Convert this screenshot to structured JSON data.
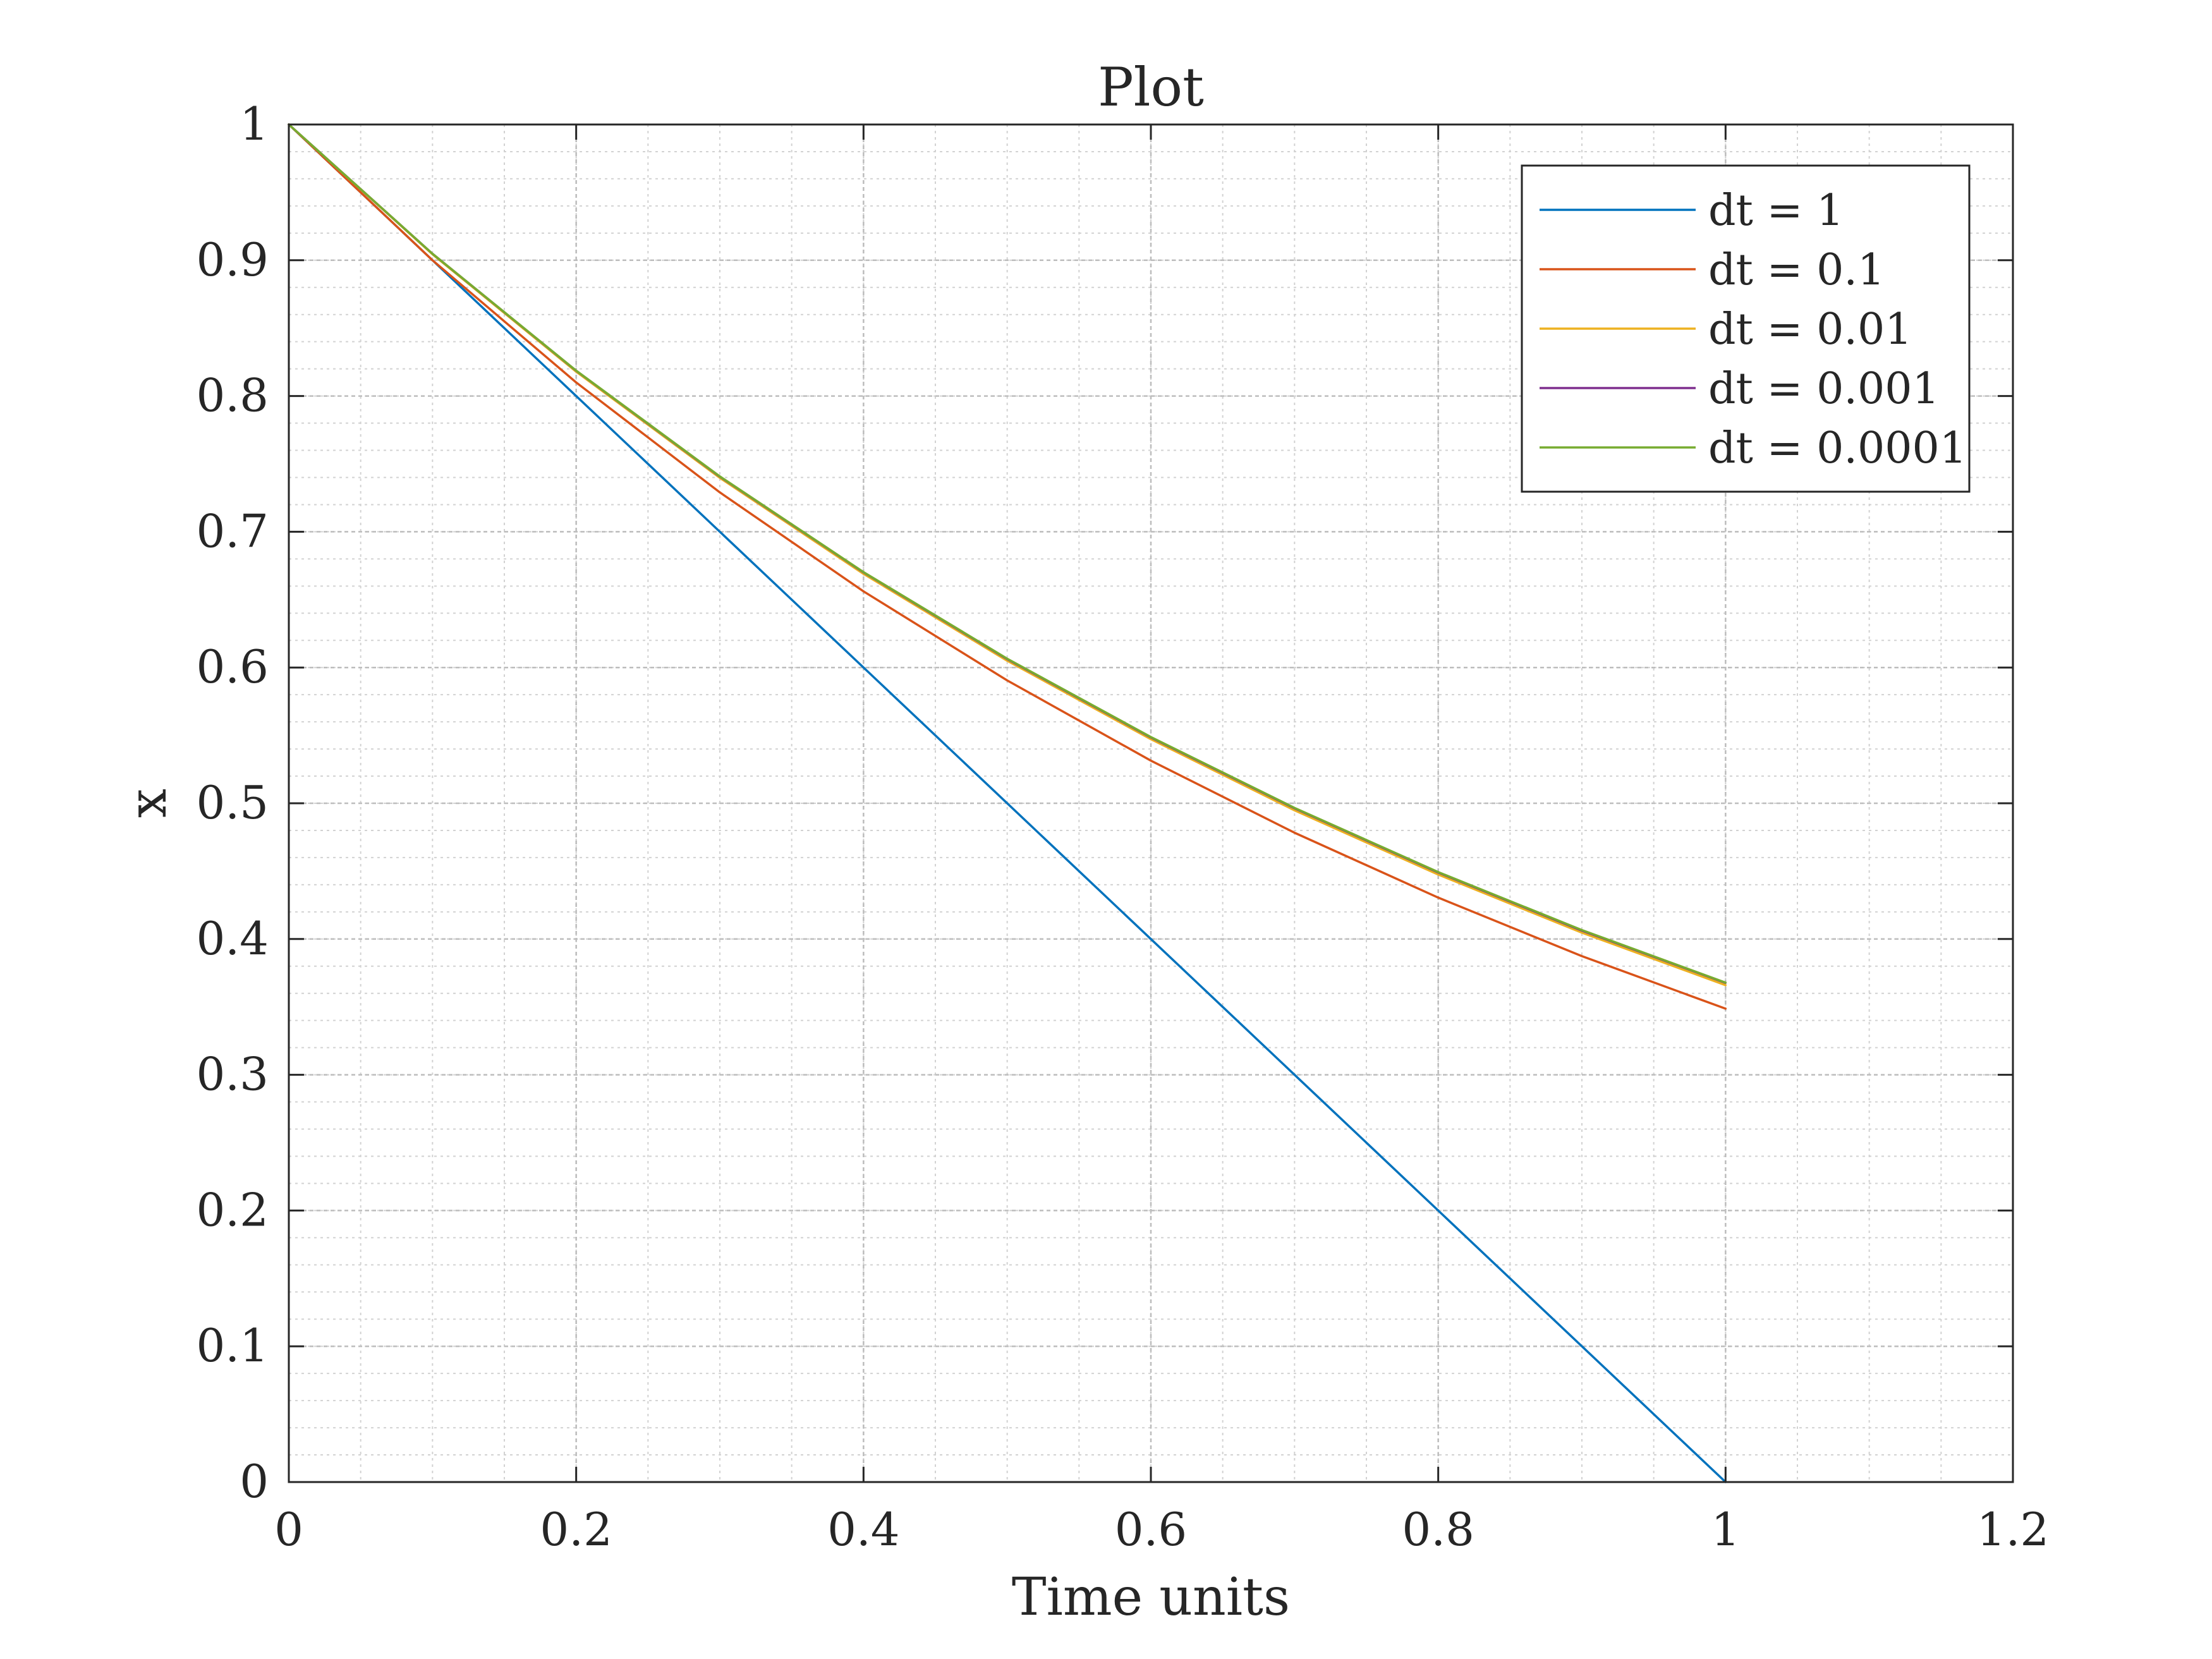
{
  "chart_data": {
    "type": "line",
    "title": "Plot",
    "xlabel": "Time units",
    "ylabel": "x",
    "xlim": [
      0,
      1.2
    ],
    "ylim": [
      0,
      1
    ],
    "xticks": [
      0,
      0.2,
      0.4,
      0.6,
      0.8,
      1,
      1.2
    ],
    "xtick_labels": [
      "0",
      "0.2",
      "0.4",
      "0.6",
      "0.8",
      "1",
      "1.2"
    ],
    "yticks": [
      0,
      0.1,
      0.2,
      0.3,
      0.4,
      0.5,
      0.6,
      0.7,
      0.8,
      0.9,
      1
    ],
    "ytick_labels": [
      "0",
      "0.1",
      "0.2",
      "0.3",
      "0.4",
      "0.5",
      "0.6",
      "0.7",
      "0.8",
      "0.9",
      "1"
    ],
    "grid": true,
    "minor_grid": true,
    "legend_position": "top-right",
    "series": [
      {
        "name": "dt = 1",
        "color": "#0072BD",
        "x": [
          0,
          1
        ],
        "y": [
          1,
          0
        ]
      },
      {
        "name": "dt = 0.1",
        "color": "#D95319",
        "x": [
          0,
          0.1,
          0.2,
          0.3,
          0.4,
          0.5,
          0.6,
          0.7,
          0.8,
          0.9,
          1
        ],
        "y": [
          1,
          0.9,
          0.81,
          0.729,
          0.6561,
          0.5905,
          0.5314,
          0.4783,
          0.4305,
          0.3874,
          0.3487
        ]
      },
      {
        "name": "dt = 0.01",
        "color": "#EDB120",
        "x": [
          0,
          0.1,
          0.2,
          0.3,
          0.4,
          0.5,
          0.6,
          0.7,
          0.8,
          0.9,
          1
        ],
        "y": [
          1,
          0.9044,
          0.8179,
          0.7397,
          0.669,
          0.605,
          0.5472,
          0.4948,
          0.4475,
          0.4047,
          0.366
        ]
      },
      {
        "name": "dt = 0.001",
        "color": "#7E2F8E",
        "x": [
          0,
          0.1,
          0.2,
          0.3,
          0.4,
          0.5,
          0.6,
          0.7,
          0.8,
          0.9,
          1
        ],
        "y": [
          1,
          0.9048,
          0.8186,
          0.7406,
          0.6701,
          0.6062,
          0.5485,
          0.4963,
          0.449,
          0.4062,
          0.3677
        ]
      },
      {
        "name": "dt = 0.0001",
        "color": "#77AC30",
        "x": [
          0,
          0.1,
          0.2,
          0.3,
          0.4,
          0.5,
          0.6,
          0.7,
          0.8,
          0.9,
          1
        ],
        "y": [
          1,
          0.9048,
          0.8187,
          0.7408,
          0.6703,
          0.6065,
          0.5488,
          0.4966,
          0.4493,
          0.4066,
          0.3679
        ]
      }
    ]
  }
}
